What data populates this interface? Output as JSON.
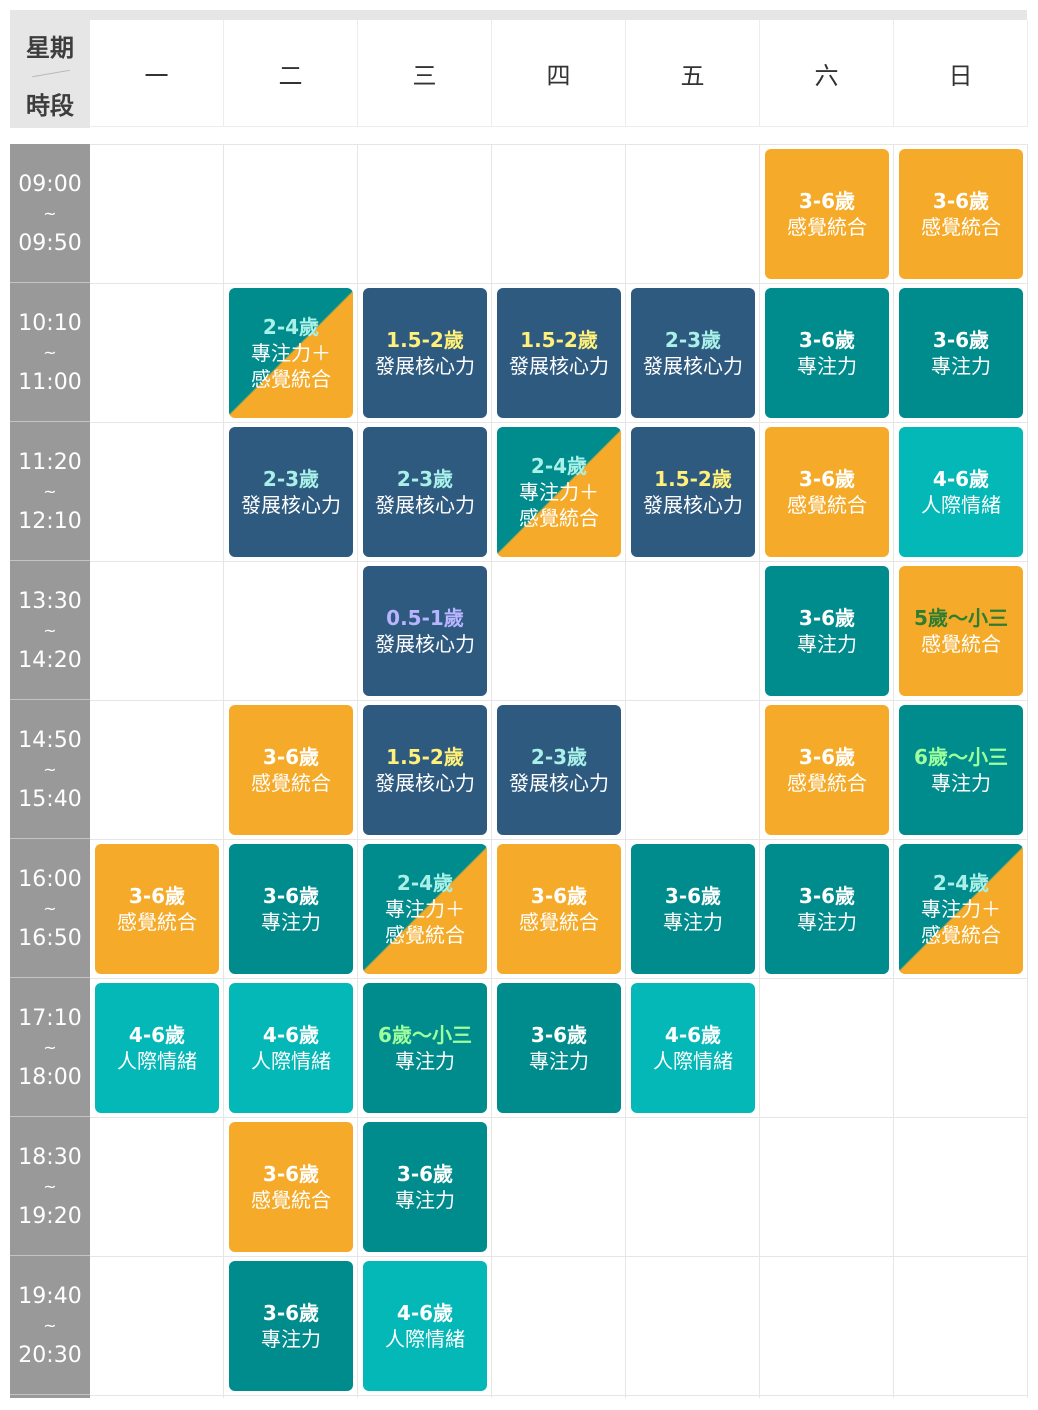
{
  "header": {
    "corner_top": "星期",
    "corner_bottom": "時段",
    "days": [
      "一",
      "二",
      "三",
      "四",
      "五",
      "六",
      "日"
    ]
  },
  "time_slots": [
    {
      "start": "09:00",
      "sep": "~",
      "end": "09:50"
    },
    {
      "start": "10:10",
      "sep": "~",
      "end": "11:00"
    },
    {
      "start": "11:20",
      "sep": "~",
      "end": "12:10"
    },
    {
      "start": "13:30",
      "sep": "~",
      "end": "14:20"
    },
    {
      "start": "14:50",
      "sep": "~",
      "end": "15:40"
    },
    {
      "start": "16:00",
      "sep": "~",
      "end": "16:50"
    },
    {
      "start": "17:10",
      "sep": "~",
      "end": "18:00"
    },
    {
      "start": "18:30",
      "sep": "~",
      "end": "19:20"
    },
    {
      "start": "19:40",
      "sep": "~",
      "end": "20:30"
    }
  ],
  "colors": {
    "orange": "#f5ab29",
    "navy": "#2f5a80",
    "teal": "#008c8c",
    "cyan": "#05b8b8",
    "age_yellow": "#fff07a",
    "age_mint": "#a8f0e8",
    "age_lavender": "#b9b4ff",
    "age_green": "#9dff9d",
    "age_darkgreen": "#2e7d32"
  },
  "classes": [
    {
      "day": 5,
      "slot": 0,
      "age": "3-6歲",
      "name": "感覺統合",
      "style": "orange"
    },
    {
      "day": 6,
      "slot": 0,
      "age": "3-6歲",
      "name": "感覺統合",
      "style": "orange"
    },
    {
      "day": 1,
      "slot": 1,
      "age": "2-4歲",
      "name": "專注力＋\n感覺統合",
      "style": "split",
      "ageColor": "age_mint"
    },
    {
      "day": 2,
      "slot": 1,
      "age": "1.5-2歲",
      "name": "發展核心力",
      "style": "navy",
      "ageColor": "age_yellow"
    },
    {
      "day": 3,
      "slot": 1,
      "age": "1.5-2歲",
      "name": "發展核心力",
      "style": "navy",
      "ageColor": "age_yellow"
    },
    {
      "day": 4,
      "slot": 1,
      "age": "2-3歲",
      "name": "發展核心力",
      "style": "navy",
      "ageColor": "age_mint"
    },
    {
      "day": 5,
      "slot": 1,
      "age": "3-6歲",
      "name": "專注力",
      "style": "teal"
    },
    {
      "day": 6,
      "slot": 1,
      "age": "3-6歲",
      "name": "專注力",
      "style": "teal"
    },
    {
      "day": 1,
      "slot": 2,
      "age": "2-3歲",
      "name": "發展核心力",
      "style": "navy",
      "ageColor": "age_mint"
    },
    {
      "day": 2,
      "slot": 2,
      "age": "2-3歲",
      "name": "發展核心力",
      "style": "navy",
      "ageColor": "age_mint"
    },
    {
      "day": 3,
      "slot": 2,
      "age": "2-4歲",
      "name": "專注力＋\n感覺統合",
      "style": "split",
      "ageColor": "age_mint"
    },
    {
      "day": 4,
      "slot": 2,
      "age": "1.5-2歲",
      "name": "發展核心力",
      "style": "navy",
      "ageColor": "age_yellow"
    },
    {
      "day": 5,
      "slot": 2,
      "age": "3-6歲",
      "name": "感覺統合",
      "style": "orange"
    },
    {
      "day": 6,
      "slot": 2,
      "age": "4-6歲",
      "name": "人際情緒",
      "style": "cyan"
    },
    {
      "day": 2,
      "slot": 3,
      "age": "0.5-1歲",
      "name": "發展核心力",
      "style": "navy",
      "ageColor": "age_lavender"
    },
    {
      "day": 5,
      "slot": 3,
      "age": "3-6歲",
      "name": "專注力",
      "style": "teal"
    },
    {
      "day": 6,
      "slot": 3,
      "age": "5歲～小三",
      "name": "感覺統合",
      "style": "orange",
      "ageColor": "age_darkgreen"
    },
    {
      "day": 1,
      "slot": 4,
      "age": "3-6歲",
      "name": "感覺統合",
      "style": "orange"
    },
    {
      "day": 2,
      "slot": 4,
      "age": "1.5-2歲",
      "name": "發展核心力",
      "style": "navy",
      "ageColor": "age_yellow"
    },
    {
      "day": 3,
      "slot": 4,
      "age": "2-3歲",
      "name": "發展核心力",
      "style": "navy",
      "ageColor": "age_mint"
    },
    {
      "day": 5,
      "slot": 4,
      "age": "3-6歲",
      "name": "感覺統合",
      "style": "orange"
    },
    {
      "day": 6,
      "slot": 4,
      "age": "6歲～小三",
      "name": "專注力",
      "style": "teal",
      "ageColor": "age_green"
    },
    {
      "day": 0,
      "slot": 5,
      "age": "3-6歲",
      "name": "感覺統合",
      "style": "orange"
    },
    {
      "day": 1,
      "slot": 5,
      "age": "3-6歲",
      "name": "專注力",
      "style": "teal"
    },
    {
      "day": 2,
      "slot": 5,
      "age": "2-4歲",
      "name": "專注力＋\n感覺統合",
      "style": "split",
      "ageColor": "age_mint"
    },
    {
      "day": 3,
      "slot": 5,
      "age": "3-6歲",
      "name": "感覺統合",
      "style": "orange"
    },
    {
      "day": 4,
      "slot": 5,
      "age": "3-6歲",
      "name": "專注力",
      "style": "teal"
    },
    {
      "day": 5,
      "slot": 5,
      "age": "3-6歲",
      "name": "專注力",
      "style": "teal"
    },
    {
      "day": 6,
      "slot": 5,
      "age": "2-4歲",
      "name": "專注力＋\n感覺統合",
      "style": "split",
      "ageColor": "age_mint"
    },
    {
      "day": 0,
      "slot": 6,
      "age": "4-6歲",
      "name": "人際情緒",
      "style": "cyan"
    },
    {
      "day": 1,
      "slot": 6,
      "age": "4-6歲",
      "name": "人際情緒",
      "style": "cyan"
    },
    {
      "day": 2,
      "slot": 6,
      "age": "6歲～小三",
      "name": "專注力",
      "style": "teal",
      "ageColor": "age_green"
    },
    {
      "day": 3,
      "slot": 6,
      "age": "3-6歲",
      "name": "專注力",
      "style": "teal"
    },
    {
      "day": 4,
      "slot": 6,
      "age": "4-6歲",
      "name": "人際情緒",
      "style": "cyan"
    },
    {
      "day": 1,
      "slot": 7,
      "age": "3-6歲",
      "name": "感覺統合",
      "style": "orange"
    },
    {
      "day": 2,
      "slot": 7,
      "age": "3-6歲",
      "name": "專注力",
      "style": "teal"
    },
    {
      "day": 1,
      "slot": 8,
      "age": "3-6歲",
      "name": "專注力",
      "style": "teal"
    },
    {
      "day": 2,
      "slot": 8,
      "age": "4-6歲",
      "name": "人際情緒",
      "style": "cyan"
    }
  ]
}
